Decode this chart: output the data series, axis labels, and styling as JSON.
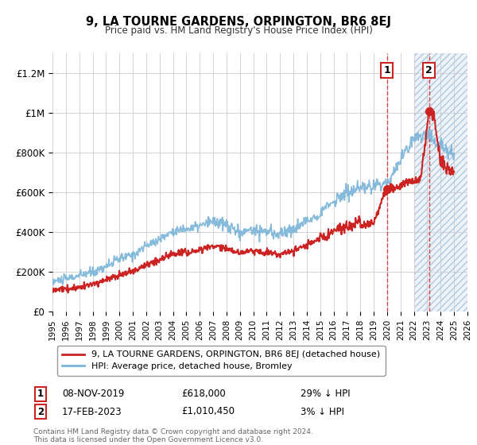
{
  "title": "9, LA TOURNE GARDENS, ORPINGTON, BR6 8EJ",
  "subtitle": "Price paid vs. HM Land Registry's House Price Index (HPI)",
  "yticks": [
    0,
    200000,
    400000,
    600000,
    800000,
    1000000,
    1200000
  ],
  "ytick_labels": [
    "£0",
    "£200K",
    "£400K",
    "£600K",
    "£800K",
    "£1M",
    "£1.2M"
  ],
  "ylim": [
    0,
    1300000
  ],
  "xlim_start": 1995.0,
  "xlim_end": 2026.0,
  "legend_line1": "9, LA TOURNE GARDENS, ORPINGTON, BR6 8EJ (detached house)",
  "legend_line2": "HPI: Average price, detached house, Bromley",
  "footnote": "Contains HM Land Registry data © Crown copyright and database right 2024.\nThis data is licensed under the Open Government Licence v3.0.",
  "t1_label": "1",
  "t1_date": "08-NOV-2019",
  "t1_price": "£618,000",
  "t1_info": "29% ↓ HPI",
  "t1_x": 2020.0,
  "t1_y": 618000,
  "t2_label": "2",
  "t2_date": "17-FEB-2023",
  "t2_price": "£1,010,450",
  "t2_info": "3% ↓ HPI",
  "t2_x": 2023.12,
  "t2_y": 1010450,
  "hpi_color": "#7ab4d8",
  "price_color": "#cc2222",
  "vline_color": "#dd3333",
  "shade_color": "#dce8f5",
  "box_edge_color": "#cc2222",
  "grid_color": "#cccccc",
  "shade_start": 2022.0
}
